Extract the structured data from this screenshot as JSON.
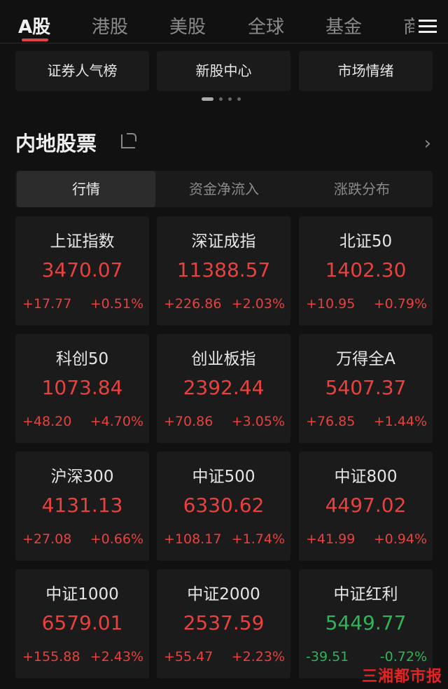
{
  "tabs": [
    "A股",
    "港股",
    "美股",
    "全球",
    "基金",
    "商"
  ],
  "active_tab": 0,
  "shortcuts": [
    "证券人气榜",
    "新股中心",
    "市场情绪"
  ],
  "section_title": "内地股票",
  "segments": [
    "行情",
    "资金净流入",
    "涨跌分布"
  ],
  "colors": {
    "up": "#e8413e",
    "down": "#2fb45a",
    "accent": "#e0434a"
  },
  "indices": [
    {
      "name": "上证指数",
      "value": "3470.07",
      "change": "+17.77",
      "pct": "+0.51%",
      "dir": "up"
    },
    {
      "name": "深证成指",
      "value": "11388.57",
      "change": "+226.86",
      "pct": "+2.03%",
      "dir": "up"
    },
    {
      "name": "北证50",
      "value": "1402.30",
      "change": "+10.95",
      "pct": "+0.79%",
      "dir": "up"
    },
    {
      "name": "科创50",
      "value": "1073.84",
      "change": "+48.20",
      "pct": "+4.70%",
      "dir": "up"
    },
    {
      "name": "创业板指",
      "value": "2392.44",
      "change": "+70.86",
      "pct": "+3.05%",
      "dir": "up"
    },
    {
      "name": "万得全A",
      "value": "5407.37",
      "change": "+76.85",
      "pct": "+1.44%",
      "dir": "up"
    },
    {
      "name": "沪深300",
      "value": "4131.13",
      "change": "+27.08",
      "pct": "+0.66%",
      "dir": "up"
    },
    {
      "name": "中证500",
      "value": "6330.62",
      "change": "+108.17",
      "pct": "+1.74%",
      "dir": "up"
    },
    {
      "name": "中证800",
      "value": "4497.02",
      "change": "+41.99",
      "pct": "+0.94%",
      "dir": "up"
    },
    {
      "name": "中证1000",
      "value": "6579.01",
      "change": "+155.88",
      "pct": "+2.43%",
      "dir": "up"
    },
    {
      "name": "中证2000",
      "value": "2537.59",
      "change": "+55.47",
      "pct": "+2.23%",
      "dir": "up"
    },
    {
      "name": "中证红利",
      "value": "5449.77",
      "change": "-39.51",
      "pct": "-0.72%",
      "dir": "down"
    }
  ],
  "watermark": "三湘都市报"
}
